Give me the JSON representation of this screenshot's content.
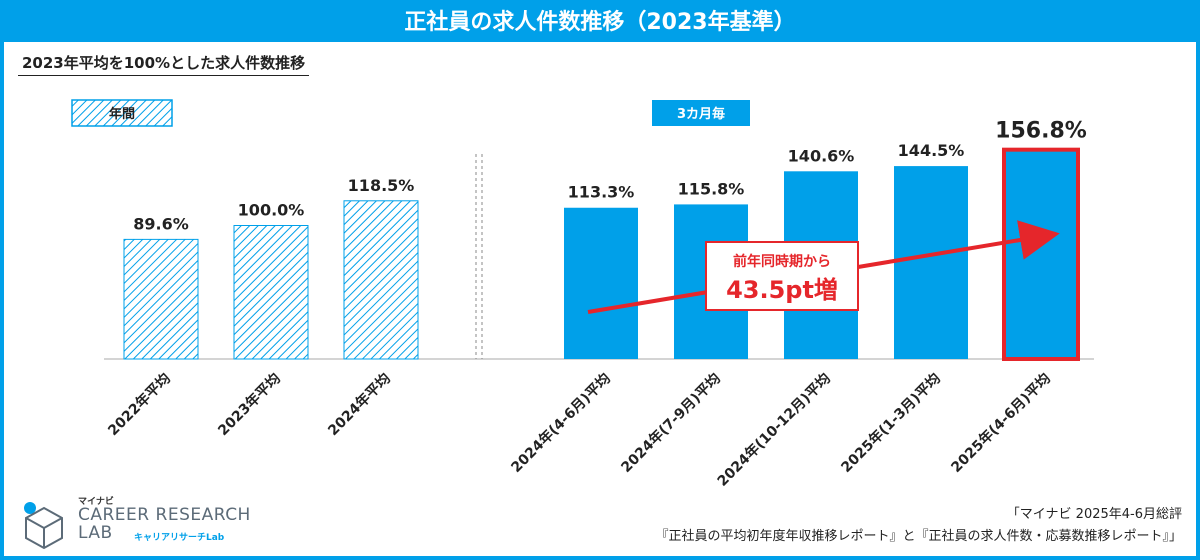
{
  "header": {
    "title": "正社員の求人件数推移（2023年基準）",
    "subtitle": "2023年平均を100%とした求人件数推移"
  },
  "legend": {
    "annual": "年間",
    "quarterly": "3カ月毎"
  },
  "callout": {
    "line1": "前年同時期から",
    "line2": "43.5pt増"
  },
  "source": {
    "line1": "「マイナビ 2025年4-6月総評",
    "line2": "『正社員の平均初年度年収推移レポート』と『正社員の求人件数・応募数推移レポート』」"
  },
  "logo": {
    "small": "マイナビ",
    "main_line1": "CAREER RESEARCH",
    "main_line2": "LAB",
    "sub": "キャリアリサーチLab"
  },
  "colors": {
    "accent": "#00a0e9",
    "highlight": "#e5262b"
  },
  "chart_data": {
    "type": "bar",
    "title": "正社員の求人件数推移（2023年基準）",
    "ylim": [
      0,
      160
    ],
    "groups": [
      {
        "name": "年間",
        "style": "hatched",
        "categories": [
          "2022年平均",
          "2023年平均",
          "2024年平均"
        ],
        "values": [
          89.6,
          100.0,
          118.5
        ],
        "labels": [
          "89.6%",
          "100.0%",
          "118.5%"
        ]
      },
      {
        "name": "3カ月毎",
        "style": "solid",
        "categories": [
          "2024年(4-6月)平均",
          "2024年(7-9月)平均",
          "2024年(10-12月)平均",
          "2025年(1-3月)平均",
          "2025年(4-6月)平均"
        ],
        "values": [
          113.3,
          115.8,
          140.6,
          144.5,
          156.8
        ],
        "labels": [
          "113.3%",
          "115.8%",
          "140.6%",
          "144.5%",
          "156.8%"
        ],
        "highlight_index": 4
      }
    ]
  }
}
